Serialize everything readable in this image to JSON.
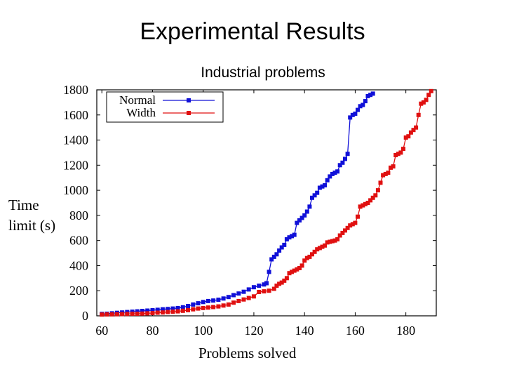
{
  "slide": {
    "title": "Experimental Results"
  },
  "chart_data": {
    "type": "line",
    "title": "Industrial problems",
    "xlabel": "Problems solved",
    "ylabel_lines": [
      "Time",
      "limit (s)"
    ],
    "xlim": [
      58,
      192
    ],
    "ylim": [
      0,
      1800
    ],
    "xticks": [
      60,
      80,
      100,
      120,
      140,
      160,
      180
    ],
    "yticks": [
      0,
      200,
      400,
      600,
      800,
      1000,
      1200,
      1400,
      1600,
      1800
    ],
    "grid": false,
    "legend_position": "top-left",
    "series": [
      {
        "name": "Normal",
        "color": "#1010d8",
        "x": [
          60,
          62,
          64,
          66,
          68,
          70,
          72,
          74,
          76,
          78,
          80,
          82,
          84,
          86,
          88,
          90,
          92,
          94,
          96,
          98,
          100,
          102,
          104,
          106,
          108,
          110,
          112,
          114,
          116,
          118,
          120,
          122,
          124,
          125,
          126,
          127,
          128,
          129,
          130,
          131,
          132,
          133,
          134,
          135,
          136,
          137,
          138,
          139,
          140,
          141,
          142,
          143,
          144,
          145,
          146,
          147,
          148,
          149,
          150,
          151,
          152,
          153,
          154,
          155,
          156,
          157,
          158,
          159,
          160,
          161,
          162,
          163,
          164,
          165,
          166,
          167
        ],
        "values": [
          15,
          17,
          20,
          24,
          27,
          30,
          33,
          36,
          39,
          42,
          45,
          48,
          52,
          55,
          58,
          62,
          68,
          78,
          90,
          100,
          110,
          118,
          122,
          128,
          138,
          150,
          165,
          178,
          192,
          210,
          228,
          240,
          250,
          260,
          350,
          450,
          470,
          490,
          520,
          545,
          565,
          610,
          625,
          635,
          645,
          740,
          760,
          780,
          800,
          830,
          870,
          940,
          960,
          980,
          1020,
          1030,
          1040,
          1080,
          1110,
          1130,
          1140,
          1150,
          1200,
          1220,
          1250,
          1290,
          1580,
          1600,
          1610,
          1640,
          1670,
          1680,
          1710,
          1750,
          1760,
          1770
        ]
      },
      {
        "name": "Width",
        "color": "#e01010",
        "x": [
          60,
          62,
          64,
          66,
          68,
          70,
          72,
          74,
          76,
          78,
          80,
          82,
          84,
          86,
          88,
          90,
          92,
          94,
          96,
          98,
          100,
          102,
          104,
          106,
          108,
          110,
          112,
          114,
          116,
          118,
          120,
          122,
          124,
          126,
          128,
          129,
          130,
          131,
          132,
          133,
          134,
          135,
          136,
          137,
          138,
          139,
          140,
          141,
          142,
          143,
          144,
          145,
          146,
          147,
          148,
          149,
          150,
          151,
          152,
          153,
          154,
          155,
          156,
          157,
          158,
          159,
          160,
          161,
          162,
          163,
          164,
          165,
          166,
          167,
          168,
          169,
          170,
          171,
          172,
          173,
          174,
          175,
          176,
          177,
          178,
          179,
          180,
          181,
          182,
          183,
          184,
          185,
          186,
          187,
          188,
          189,
          190
        ],
        "values": [
          10,
          11,
          12,
          13,
          14,
          15,
          16,
          17,
          18,
          20,
          22,
          25,
          27,
          30,
          33,
          36,
          40,
          45,
          52,
          58,
          62,
          66,
          70,
          75,
          82,
          90,
          105,
          118,
          130,
          142,
          155,
          190,
          195,
          200,
          215,
          240,
          255,
          265,
          280,
          300,
          340,
          350,
          360,
          370,
          380,
          400,
          440,
          460,
          470,
          490,
          510,
          530,
          540,
          550,
          560,
          585,
          590,
          595,
          600,
          610,
          640,
          660,
          680,
          700,
          720,
          730,
          740,
          790,
          870,
          880,
          890,
          900,
          920,
          940,
          960,
          1000,
          1060,
          1120,
          1130,
          1140,
          1180,
          1190,
          1280,
          1290,
          1300,
          1330,
          1420,
          1430,
          1460,
          1480,
          1500,
          1600,
          1690,
          1700,
          1720,
          1760,
          1790
        ]
      }
    ]
  }
}
